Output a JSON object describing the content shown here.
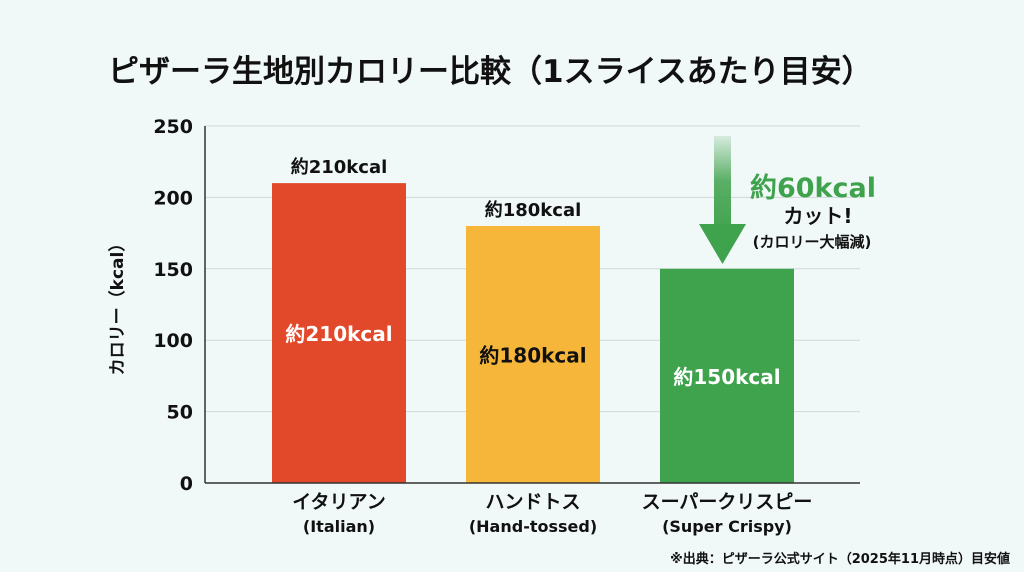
{
  "chart_data": {
    "type": "bar",
    "title": "ピザーラ生地別カロリー比較（1スライスあたり目安）",
    "ylabel": "カロリー（kcal）",
    "xlabel": "",
    "ylim": [
      0,
      250
    ],
    "yticks": [
      0,
      50,
      100,
      150,
      200,
      250
    ],
    "grid": true,
    "categories": [
      {
        "label": "イタリアン",
        "sublabel": "(Italian)"
      },
      {
        "label": "ハンドトス",
        "sublabel": "(Hand-tossed)"
      },
      {
        "label": "スーパークリスピー",
        "sublabel": "(Super Crispy)"
      }
    ],
    "values": [
      210,
      180,
      150
    ],
    "top_labels": [
      "約210kcal",
      "約180kcal",
      ""
    ],
    "bar_labels": [
      "約210kcal",
      "約180kcal",
      "約150kcal"
    ],
    "bar_colors": [
      "#e2492b",
      "#f5b63a",
      "#3fa24c"
    ],
    "annotation": {
      "headline": "約60kcal",
      "line2": "カット!",
      "line3": "(カロリー大幅減)",
      "color": "#3fa24c"
    },
    "footnote": "※出典：ピザーラ公式サイト（2025年11月時点）目安値"
  }
}
